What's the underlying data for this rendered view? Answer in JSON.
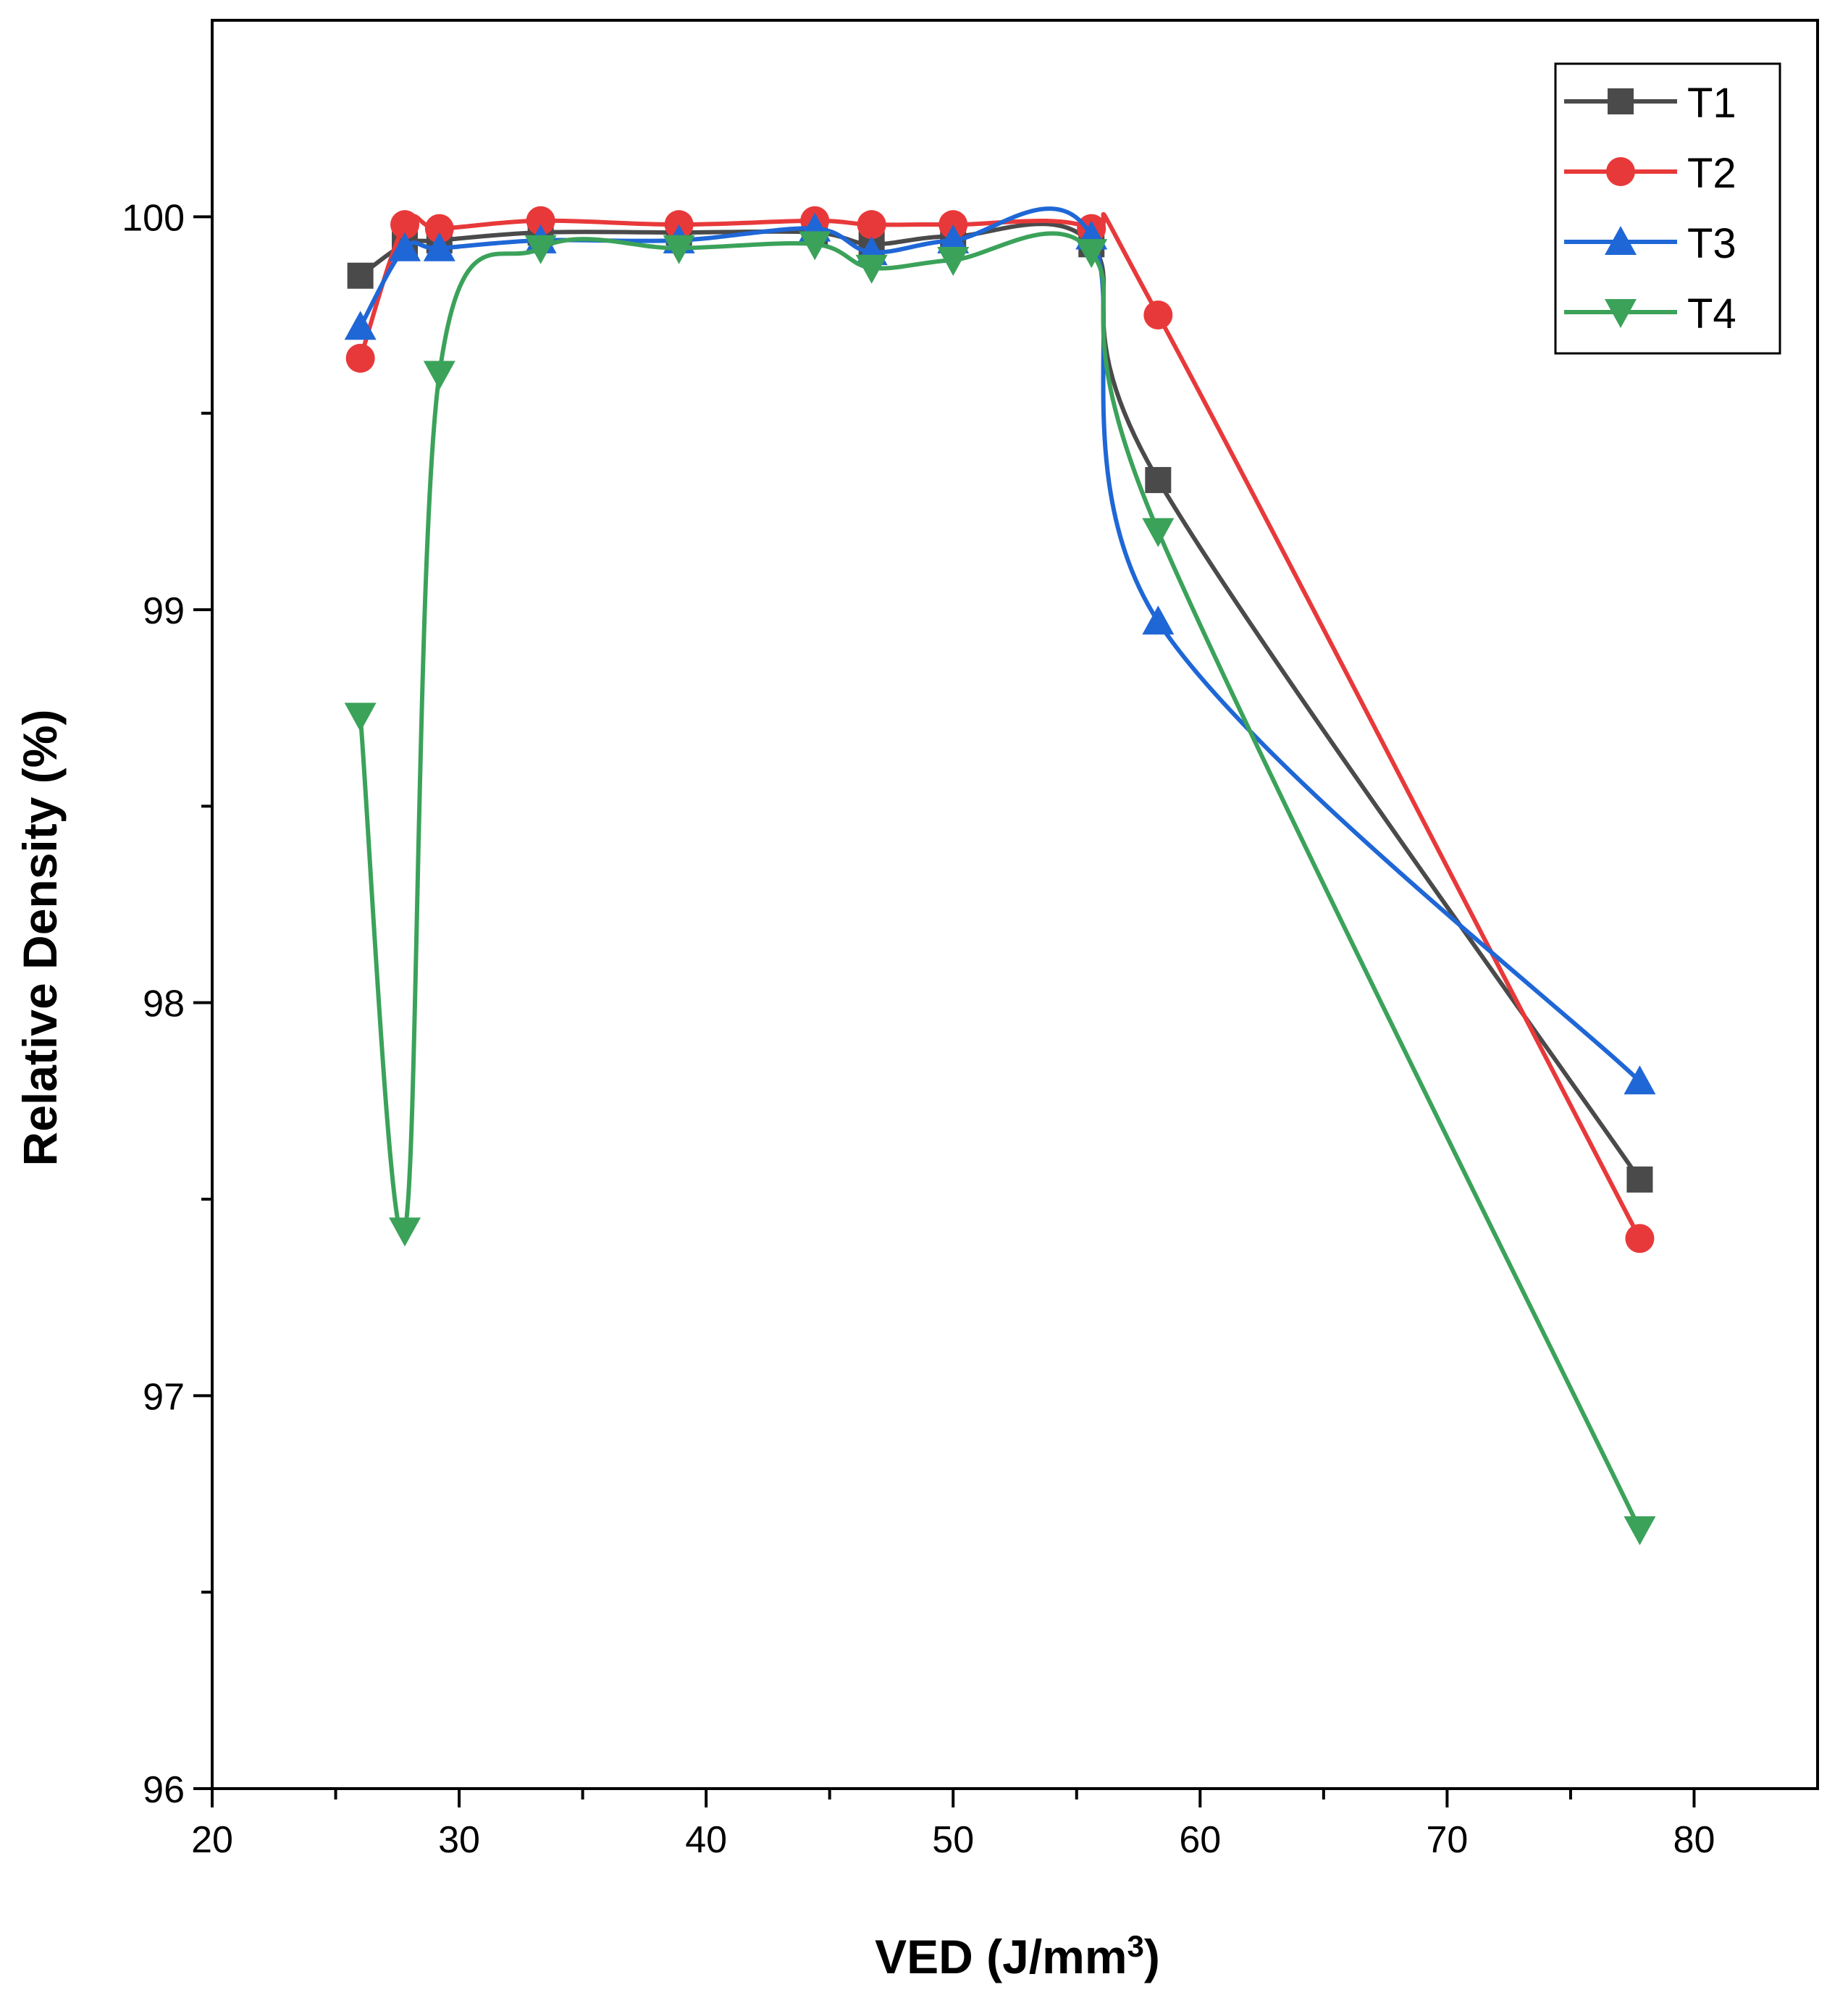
{
  "chart_data": {
    "type": "line",
    "title": "",
    "xlabel": "VED (J/mm",
    "xlabel_sup": "3",
    "xlabel_close": ")",
    "ylabel": "Relative Density (%)",
    "xlim": [
      20,
      85
    ],
    "ylim": [
      96,
      100.5
    ],
    "x_ticks": [
      20,
      30,
      40,
      50,
      60,
      70,
      80
    ],
    "y_ticks": [
      96,
      97,
      98,
      99,
      100
    ],
    "x_tick_labels": [
      "20",
      "30",
      "40",
      "50",
      "60",
      "70",
      "80"
    ],
    "y_tick_labels": [
      "96",
      "97",
      "98",
      "99",
      "100"
    ],
    "legend_position": "top-right",
    "series": [
      {
        "name": "T1",
        "color": "#4a4a4a",
        "marker": "square",
        "x": [
          26.0,
          27.8,
          29.2,
          33.3,
          38.9,
          44.4,
          46.7,
          50.0,
          55.6,
          58.3,
          77.8
        ],
        "y": [
          99.85,
          99.93,
          99.94,
          99.96,
          99.96,
          99.96,
          99.93,
          99.95,
          99.93,
          99.33,
          97.55
        ]
      },
      {
        "name": "T2",
        "color": "#e8393a",
        "marker": "circle",
        "x": [
          26.0,
          27.8,
          29.2,
          33.3,
          38.9,
          44.4,
          46.7,
          50.0,
          55.6,
          58.3,
          77.8
        ],
        "y": [
          99.64,
          99.98,
          99.97,
          99.99,
          99.98,
          99.99,
          99.98,
          99.98,
          99.97,
          99.75,
          97.4
        ]
      },
      {
        "name": "T3",
        "color": "#1f67d6",
        "marker": "triangle-up",
        "x": [
          26.0,
          27.8,
          29.2,
          33.3,
          38.9,
          44.4,
          46.7,
          50.0,
          55.6,
          58.3,
          77.8
        ],
        "y": [
          99.72,
          99.92,
          99.92,
          99.94,
          99.94,
          99.97,
          99.91,
          99.94,
          99.95,
          98.97,
          97.8
        ]
      },
      {
        "name": "T4",
        "color": "#3ba25a",
        "marker": "triangle-down",
        "x": [
          26.0,
          27.8,
          29.2,
          33.3,
          38.9,
          44.4,
          46.7,
          50.0,
          55.6,
          58.3,
          77.8
        ],
        "y": [
          98.73,
          97.42,
          99.6,
          99.92,
          99.92,
          99.93,
          99.87,
          99.89,
          99.91,
          99.2,
          96.66
        ]
      }
    ]
  }
}
